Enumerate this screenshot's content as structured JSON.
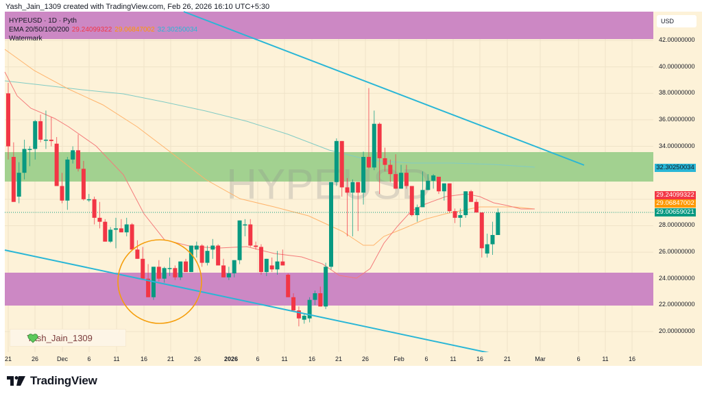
{
  "header": {
    "attribution": "Yash_Jain_1309 created with TradingView.com, Feb 26, 2026 16:10 UTC+5:30"
  },
  "legend": {
    "symbol_line": "HYPEUSD · 1D · Pyth",
    "ema_label": "EMA 20/50/100/200",
    "ema20": "29.24099322",
    "ema50": "29.06847002",
    "ema100": "32.30250034",
    "watermark_label": "Watermark"
  },
  "watermark": "HYPEUSD",
  "price_axis": {
    "currency": "USD",
    "ticks": [
      "42.00000000",
      "40.00000000",
      "38.00000000",
      "36.00000000",
      "34.00000000",
      "32.00000000",
      "30.00000000",
      "28.00000000",
      "26.00000000",
      "24.00000000",
      "22.00000000",
      "20.00000000"
    ],
    "tags": [
      {
        "label": "32.30250034",
        "color": "#29b6d6",
        "price": 32.3025
      },
      {
        "label": "29.24099322",
        "color": "#f23645",
        "price": 29.241
      },
      {
        "label": "29.06847002",
        "color": "#ff9800",
        "price": 29.068
      },
      {
        "label": "29.00659021",
        "color": "#089981",
        "price": 29.007
      }
    ]
  },
  "time_axis": {
    "labels": [
      "21",
      "26",
      "Dec",
      "6",
      "11",
      "16",
      "21",
      "26",
      "2026",
      "6",
      "11",
      "16",
      "21",
      "26",
      "Feb",
      "6",
      "11",
      "16",
      "21",
      "Mar",
      "6",
      "11",
      "16"
    ]
  },
  "badge": {
    "text": "Yash_Jain_1309",
    "icon": "green-heart-icon"
  },
  "branding": {
    "text": "TradingView",
    "icon": "tradingview-logo-icon"
  },
  "colors": {
    "background": "#fdf2d8",
    "up": "#089981",
    "down": "#f23645",
    "resistance_zone": "#cc88c4",
    "support_zone_green": "#a2d190",
    "trendline": "#29b6d6",
    "circle": "#f59e0b",
    "ema20": "#f23645",
    "ema50": "#ff9800",
    "ema100": "#80cbc4"
  },
  "chart_data": {
    "type": "candlestick",
    "title": "HYPEUSD · 1D · Pyth",
    "xlabel": "",
    "ylabel": "USD",
    "ylim": [
      19.0,
      43.0
    ],
    "grid": true,
    "legend_position": "top-left",
    "series": [
      {
        "name": "EMA 20",
        "last": 29.24099322
      },
      {
        "name": "EMA 50",
        "last": 29.06847002
      },
      {
        "name": "EMA 100",
        "last": 32.30250034
      }
    ],
    "last_price": 29.00659021,
    "zones": [
      {
        "name": "top resistance (purple)",
        "from": 42.0,
        "to": 43.8
      },
      {
        "name": "green zone",
        "from": 31.2,
        "to": 33.4
      },
      {
        "name": "purple support zone",
        "from": 21.9,
        "to": 24.4
      }
    ],
    "trendlines": [
      {
        "name": "upper descending",
        "points": [
          [
            "Nov 14",
            43.5
          ],
          [
            "Mar 1",
            32.5
          ]
        ]
      },
      {
        "name": "lower descending",
        "points": [
          [
            "Nov 19",
            26.1
          ],
          [
            "Feb 18",
            18.6
          ]
        ]
      }
    ],
    "annotation": "orange circle around Dec 16–26 lows (~22–26)",
    "candles": [
      {
        "o": 38.0,
        "h": 38.8,
        "l": 33.0,
        "c": 34.0
      },
      {
        "o": 33.2,
        "h": 34.3,
        "l": 29.8,
        "c": 29.8
      },
      {
        "o": 30.2,
        "h": 32.8,
        "l": 29.7,
        "c": 32.0
      },
      {
        "o": 32.0,
        "h": 34.5,
        "l": 31.5,
        "c": 33.8
      },
      {
        "o": 33.8,
        "h": 34.0,
        "l": 32.5,
        "c": 33.8
      },
      {
        "o": 33.8,
        "h": 36.0,
        "l": 33.0,
        "c": 35.9
      },
      {
        "o": 35.9,
        "h": 36.4,
        "l": 34.3,
        "c": 34.5
      },
      {
        "o": 34.5,
        "h": 36.7,
        "l": 33.8,
        "c": 34.5
      },
      {
        "o": 34.5,
        "h": 36.2,
        "l": 34.0,
        "c": 34.4
      },
      {
        "o": 34.2,
        "h": 34.7,
        "l": 32.0,
        "c": 31.0
      },
      {
        "o": 31.0,
        "h": 32.0,
        "l": 29.7,
        "c": 29.9
      },
      {
        "o": 29.9,
        "h": 33.2,
        "l": 29.2,
        "c": 33.0
      },
      {
        "o": 33.0,
        "h": 34.0,
        "l": 32.7,
        "c": 33.7
      },
      {
        "o": 33.7,
        "h": 34.9,
        "l": 32.1,
        "c": 32.3
      },
      {
        "o": 32.3,
        "h": 32.9,
        "l": 29.9,
        "c": 30.0
      },
      {
        "o": 30.0,
        "h": 30.4,
        "l": 29.8,
        "c": 30.0
      },
      {
        "o": 30.0,
        "h": 30.2,
        "l": 28.1,
        "c": 28.6
      },
      {
        "o": 28.6,
        "h": 29.8,
        "l": 27.8,
        "c": 28.3
      },
      {
        "o": 28.3,
        "h": 28.5,
        "l": 26.9,
        "c": 26.8
      },
      {
        "o": 26.8,
        "h": 27.9,
        "l": 26.7,
        "c": 27.7
      },
      {
        "o": 27.7,
        "h": 28.6,
        "l": 26.3,
        "c": 27.8
      },
      {
        "o": 27.8,
        "h": 28.5,
        "l": 27.5,
        "c": 27.5
      },
      {
        "o": 27.5,
        "h": 28.6,
        "l": 27.2,
        "c": 28.1
      },
      {
        "o": 28.1,
        "h": 28.2,
        "l": 26.3,
        "c": 26.2
      },
      {
        "o": 26.2,
        "h": 26.9,
        "l": 25.5,
        "c": 25.5
      },
      {
        "o": 25.5,
        "h": 26.4,
        "l": 25.3,
        "c": 24.0
      },
      {
        "o": 24.0,
        "h": 25.1,
        "l": 22.8,
        "c": 22.6
      },
      {
        "o": 22.6,
        "h": 24.9,
        "l": 22.4,
        "c": 24.9
      },
      {
        "o": 24.9,
        "h": 25.4,
        "l": 23.8,
        "c": 24.0
      },
      {
        "o": 24.0,
        "h": 24.9,
        "l": 23.7,
        "c": 24.8
      },
      {
        "o": 24.8,
        "h": 25.6,
        "l": 24.2,
        "c": 24.8
      },
      {
        "o": 24.8,
        "h": 25.0,
        "l": 23.9,
        "c": 24.1
      },
      {
        "o": 24.1,
        "h": 25.3,
        "l": 23.9,
        "c": 25.3
      },
      {
        "o": 25.3,
        "h": 25.5,
        "l": 24.5,
        "c": 24.5
      },
      {
        "o": 24.5,
        "h": 26.5,
        "l": 24.5,
        "c": 26.5
      },
      {
        "o": 26.2,
        "h": 26.8,
        "l": 25.6,
        "c": 26.5
      },
      {
        "o": 26.5,
        "h": 26.6,
        "l": 24.9,
        "c": 25.2
      },
      {
        "o": 25.2,
        "h": 26.5,
        "l": 25.0,
        "c": 26.1
      },
      {
        "o": 26.2,
        "h": 27.0,
        "l": 25.5,
        "c": 26.5
      },
      {
        "o": 26.5,
        "h": 26.6,
        "l": 25.0,
        "c": 25.0
      },
      {
        "o": 25.0,
        "h": 25.5,
        "l": 24.3,
        "c": 24.1
      },
      {
        "o": 24.1,
        "h": 24.9,
        "l": 23.9,
        "c": 24.4
      },
      {
        "o": 24.4,
        "h": 25.4,
        "l": 24.1,
        "c": 25.4
      },
      {
        "o": 25.4,
        "h": 28.4,
        "l": 25.1,
        "c": 28.4
      },
      {
        "o": 28.1,
        "h": 28.5,
        "l": 27.2,
        "c": 28.1
      },
      {
        "o": 28.1,
        "h": 28.5,
        "l": 26.4,
        "c": 26.5
      },
      {
        "o": 26.5,
        "h": 26.8,
        "l": 26.2,
        "c": 26.4
      },
      {
        "o": 26.4,
        "h": 26.6,
        "l": 24.3,
        "c": 24.5
      },
      {
        "o": 24.5,
        "h": 25.5,
        "l": 24.2,
        "c": 25.5
      },
      {
        "o": 25.0,
        "h": 25.6,
        "l": 24.5,
        "c": 24.7
      },
      {
        "o": 24.7,
        "h": 26.1,
        "l": 24.3,
        "c": 25.3
      },
      {
        "o": 25.3,
        "h": 26.2,
        "l": 25.0,
        "c": 25.0
      },
      {
        "o": 24.3,
        "h": 24.4,
        "l": 22.7,
        "c": 22.6
      },
      {
        "o": 22.6,
        "h": 22.9,
        "l": 21.6,
        "c": 21.6
      },
      {
        "o": 21.6,
        "h": 21.9,
        "l": 20.4,
        "c": 21.0
      },
      {
        "o": 20.9,
        "h": 21.4,
        "l": 20.6,
        "c": 21.2
      },
      {
        "o": 21.0,
        "h": 22.6,
        "l": 20.7,
        "c": 22.4
      },
      {
        "o": 22.4,
        "h": 23.1,
        "l": 22.0,
        "c": 22.9
      },
      {
        "o": 22.9,
        "h": 23.4,
        "l": 21.9,
        "c": 21.9
      },
      {
        "o": 21.9,
        "h": 25.2,
        "l": 21.7,
        "c": 24.9
      },
      {
        "o": 24.9,
        "h": 31.3,
        "l": 24.7,
        "c": 31.3
      },
      {
        "o": 31.3,
        "h": 34.6,
        "l": 31.0,
        "c": 34.4
      },
      {
        "o": 34.4,
        "h": 34.4,
        "l": 30.2,
        "c": 30.9
      },
      {
        "o": 30.9,
        "h": 31.6,
        "l": 27.2,
        "c": 30.5
      },
      {
        "o": 30.5,
        "h": 31.5,
        "l": 27.2,
        "c": 31.3
      },
      {
        "o": 31.3,
        "h": 31.3,
        "l": 27.6,
        "c": 30.5
      },
      {
        "o": 30.5,
        "h": 33.6,
        "l": 29.6,
        "c": 33.2
      },
      {
        "o": 33.2,
        "h": 38.4,
        "l": 32.3,
        "c": 32.4
      },
      {
        "o": 32.4,
        "h": 36.7,
        "l": 32.2,
        "c": 35.7
      },
      {
        "o": 35.7,
        "h": 35.8,
        "l": 30.4,
        "c": 33.1
      },
      {
        "o": 33.1,
        "h": 33.9,
        "l": 32.1,
        "c": 32.6
      },
      {
        "o": 32.6,
        "h": 33.0,
        "l": 31.3,
        "c": 31.9
      },
      {
        "o": 31.9,
        "h": 33.4,
        "l": 30.9,
        "c": 30.8
      },
      {
        "o": 30.8,
        "h": 32.6,
        "l": 30.9,
        "c": 32.0
      },
      {
        "o": 32.0,
        "h": 32.6,
        "l": 30.8,
        "c": 31.0
      },
      {
        "o": 31.0,
        "h": 31.0,
        "l": 28.7,
        "c": 28.8
      },
      {
        "o": 28.8,
        "h": 29.6,
        "l": 28.3,
        "c": 29.4
      },
      {
        "o": 29.4,
        "h": 32.1,
        "l": 29.4,
        "c": 30.7
      },
      {
        "o": 30.7,
        "h": 31.9,
        "l": 30.9,
        "c": 31.4
      },
      {
        "o": 31.4,
        "h": 31.9,
        "l": 30.8,
        "c": 31.8
      },
      {
        "o": 31.7,
        "h": 31.6,
        "l": 30.4,
        "c": 30.6
      },
      {
        "o": 30.6,
        "h": 31.2,
        "l": 29.9,
        "c": 31.2
      },
      {
        "o": 31.2,
        "h": 31.2,
        "l": 29.0,
        "c": 29.1
      },
      {
        "o": 29.1,
        "h": 29.3,
        "l": 28.2,
        "c": 28.6
      },
      {
        "o": 28.6,
        "h": 29.3,
        "l": 27.9,
        "c": 28.8
      },
      {
        "o": 28.8,
        "h": 30.6,
        "l": 28.6,
        "c": 30.6
      },
      {
        "o": 30.6,
        "h": 30.7,
        "l": 29.8,
        "c": 29.8
      },
      {
        "o": 29.8,
        "h": 30.0,
        "l": 29.1,
        "c": 29.0
      },
      {
        "o": 29.0,
        "h": 29.0,
        "l": 25.6,
        "c": 26.3
      },
      {
        "o": 25.9,
        "h": 27.4,
        "l": 25.6,
        "c": 26.6
      },
      {
        "o": 26.6,
        "h": 28.3,
        "l": 25.8,
        "c": 27.3
      },
      {
        "o": 27.3,
        "h": 29.3,
        "l": 27.3,
        "c": 29.0
      }
    ]
  }
}
